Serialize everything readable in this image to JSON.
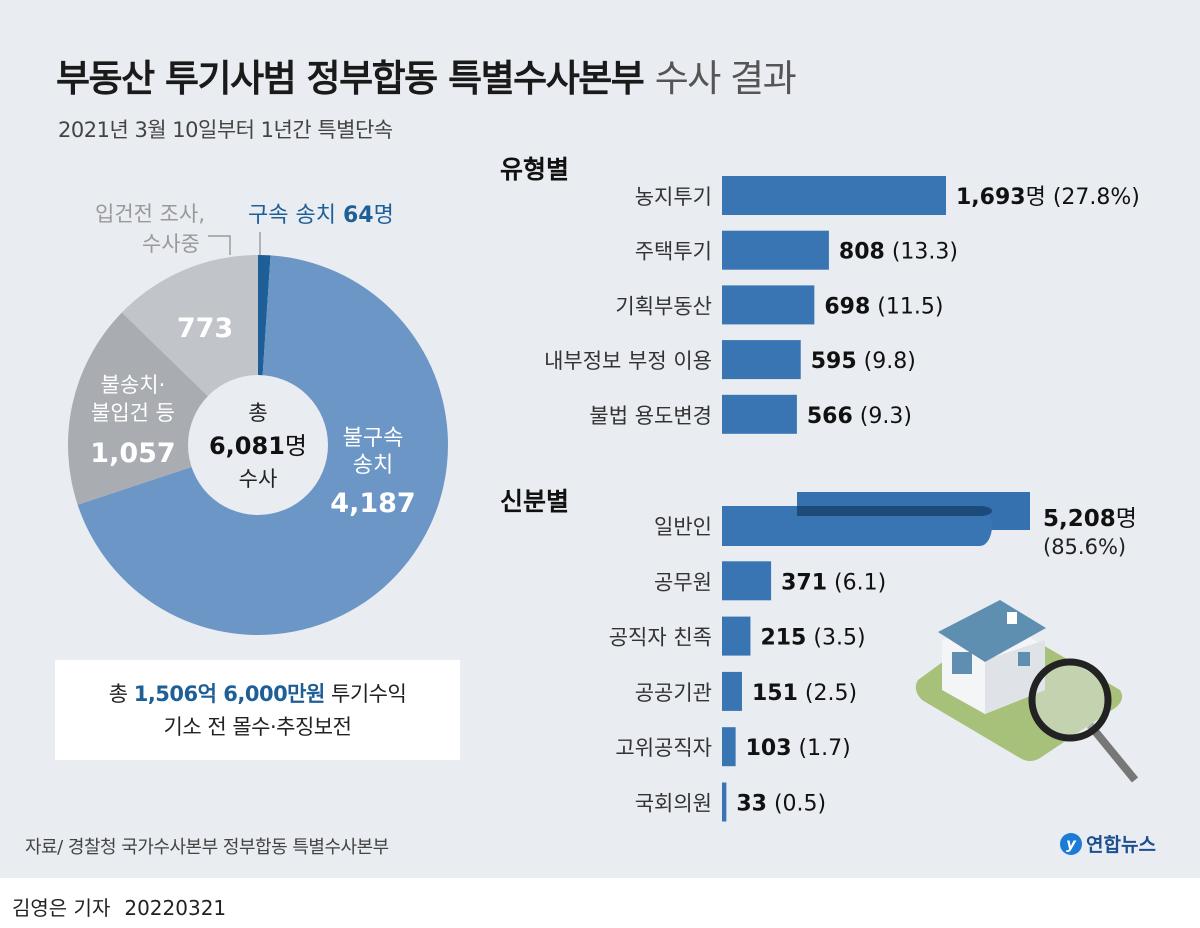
{
  "title": {
    "bold": "부동산 투기사범 정부합동 특별수사본부",
    "light": "수사 결과"
  },
  "subtitle": "2021년 3월 10일부터 1년간 특별단속",
  "chart_data": [
    {
      "type": "pie",
      "center_label": {
        "line1": "총",
        "value": "6,081",
        "unit": "명",
        "line3": "수사"
      },
      "slices": [
        {
          "label": "구속 송치",
          "value": 64,
          "value_text": "64",
          "unit": "명",
          "color": "#1f5f97"
        },
        {
          "label_lines": [
            "불구속",
            "송치"
          ],
          "value": 4187,
          "value_text": "4,187",
          "color": "#6b96c6"
        },
        {
          "label_lines": [
            "불송치·",
            "불입건 등"
          ],
          "value": 1057,
          "value_text": "1,057",
          "color": "#a9acb1"
        },
        {
          "label_lines": [
            "입건전 조사,",
            "수사중"
          ],
          "value": 773,
          "value_text": "773",
          "color": "#c1c4c8"
        }
      ]
    },
    {
      "type": "bar",
      "title": "유형별",
      "categories": [
        "농지투기",
        "주택투기",
        "기획부동산",
        "내부정보 부정 이용",
        "불법 용도변경"
      ],
      "values": [
        1693,
        808,
        698,
        595,
        566
      ],
      "value_text": [
        "1,693",
        "808",
        "698",
        "595",
        "566"
      ],
      "unit_first": "명",
      "percents": [
        "(27.8%)",
        "(13.3)",
        "(11.5)",
        "(9.8)",
        "(9.3)"
      ],
      "color": "#3a75b3"
    },
    {
      "type": "bar",
      "title": "신분별",
      "categories": [
        "일반인",
        "공무원",
        "공직자 친족",
        "공공기관",
        "고위공직자",
        "국회의원"
      ],
      "values": [
        5208,
        371,
        215,
        151,
        103,
        33
      ],
      "value_text": [
        "5,208",
        "371",
        "215",
        "151",
        "103",
        "33"
      ],
      "unit_first": "명",
      "percents": [
        "(85.6%)",
        "(6.1)",
        "(3.5)",
        "(2.5)",
        "(1.7)",
        "(0.5)"
      ],
      "color": "#3a75b3",
      "broken_first_bar": true
    }
  ],
  "box": {
    "prefix": "총",
    "amount": "1,506억 6,000만원",
    "suffix": "투기수익",
    "line2": "기소 전 몰수·추징보전"
  },
  "source": "자료/ 경찰청 국가수사본부 정부합동 특별수사본부",
  "logo": {
    "text": "연합뉴스"
  },
  "byline": {
    "reporter": "김영은 기자",
    "date": "20220321"
  }
}
